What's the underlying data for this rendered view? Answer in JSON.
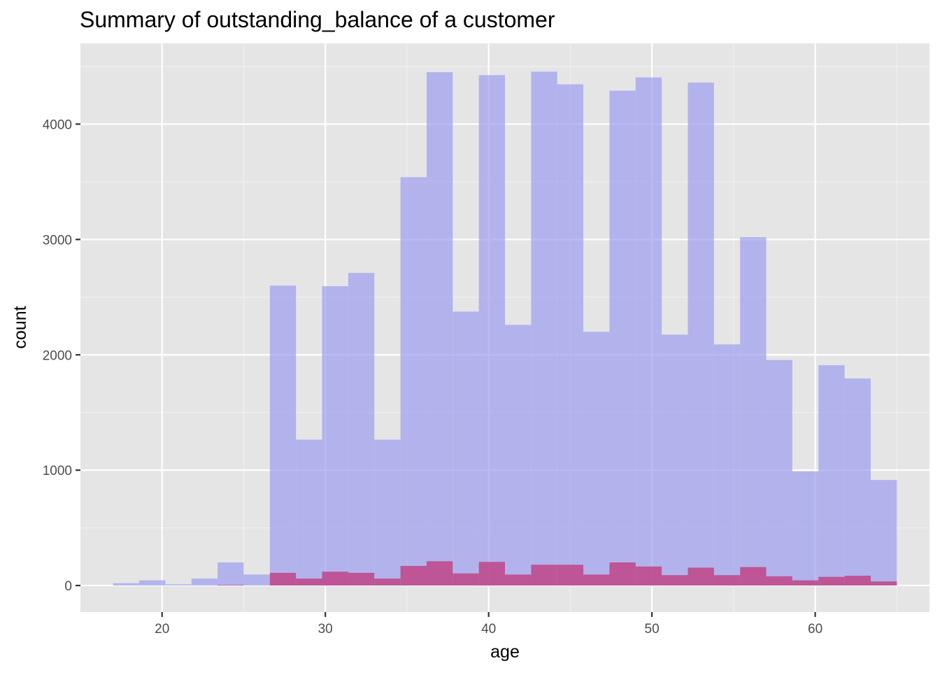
{
  "chart_data": {
    "type": "histogram",
    "title": "Summary of outstanding_balance of a customer",
    "xlabel": "age",
    "ylabel": "count",
    "xlim": [
      15,
      67
    ],
    "ylim": [
      -230,
      4700
    ],
    "x_ticks": [
      20,
      30,
      40,
      50,
      60
    ],
    "y_ticks": [
      0,
      1000,
      2000,
      3000,
      4000
    ],
    "bin_width": 1.6,
    "panel_background": "#e5e5e5",
    "grid": true,
    "legend": "none",
    "series": [
      {
        "color": "#9d9ef0",
        "opacity": 0.7,
        "bins": [
          {
            "x0": 17.0,
            "x1": 18.6,
            "count": 20
          },
          {
            "x0": 18.6,
            "x1": 20.2,
            "count": 45
          },
          {
            "x0": 20.2,
            "x1": 21.8,
            "count": 10
          },
          {
            "x0": 21.8,
            "x1": 23.4,
            "count": 60
          },
          {
            "x0": 23.4,
            "x1": 25.0,
            "count": 200
          },
          {
            "x0": 25.0,
            "x1": 26.6,
            "count": 95
          },
          {
            "x0": 26.6,
            "x1": 28.2,
            "count": 2600
          },
          {
            "x0": 28.2,
            "x1": 29.8,
            "count": 1265
          },
          {
            "x0": 29.8,
            "x1": 31.4,
            "count": 2595
          },
          {
            "x0": 31.4,
            "x1": 33.0,
            "count": 2710
          },
          {
            "x0": 33.0,
            "x1": 34.6,
            "count": 1265
          },
          {
            "x0": 34.6,
            "x1": 36.2,
            "count": 3540
          },
          {
            "x0": 36.2,
            "x1": 37.8,
            "count": 4450
          },
          {
            "x0": 37.8,
            "x1": 39.4,
            "count": 2375
          },
          {
            "x0": 39.4,
            "x1": 41.0,
            "count": 4425
          },
          {
            "x0": 41.0,
            "x1": 42.6,
            "count": 2260
          },
          {
            "x0": 42.6,
            "x1": 44.2,
            "count": 4455
          },
          {
            "x0": 44.2,
            "x1": 45.8,
            "count": 4345
          },
          {
            "x0": 45.8,
            "x1": 47.4,
            "count": 2200
          },
          {
            "x0": 47.4,
            "x1": 49.0,
            "count": 4290
          },
          {
            "x0": 49.0,
            "x1": 50.6,
            "count": 4405
          },
          {
            "x0": 50.6,
            "x1": 52.2,
            "count": 2175
          },
          {
            "x0": 52.2,
            "x1": 53.8,
            "count": 4360
          },
          {
            "x0": 53.8,
            "x1": 55.4,
            "count": 2090
          },
          {
            "x0": 55.4,
            "x1": 57.0,
            "count": 3020
          },
          {
            "x0": 57.0,
            "x1": 58.6,
            "count": 1955
          },
          {
            "x0": 58.6,
            "x1": 60.2,
            "count": 990
          },
          {
            "x0": 60.2,
            "x1": 61.8,
            "count": 1910
          },
          {
            "x0": 61.8,
            "x1": 63.4,
            "count": 1795
          },
          {
            "x0": 63.4,
            "x1": 65.0,
            "count": 915
          }
        ]
      },
      {
        "color": "#c0367a",
        "opacity": 0.75,
        "bins": [
          {
            "x0": 23.4,
            "x1": 25.0,
            "count": 5
          },
          {
            "x0": 26.6,
            "x1": 28.2,
            "count": 110
          },
          {
            "x0": 28.2,
            "x1": 29.8,
            "count": 60
          },
          {
            "x0": 29.8,
            "x1": 31.4,
            "count": 120
          },
          {
            "x0": 31.4,
            "x1": 33.0,
            "count": 110
          },
          {
            "x0": 33.0,
            "x1": 34.6,
            "count": 60
          },
          {
            "x0": 34.6,
            "x1": 36.2,
            "count": 170
          },
          {
            "x0": 36.2,
            "x1": 37.8,
            "count": 210
          },
          {
            "x0": 37.8,
            "x1": 39.4,
            "count": 105
          },
          {
            "x0": 39.4,
            "x1": 41.0,
            "count": 205
          },
          {
            "x0": 41.0,
            "x1": 42.6,
            "count": 95
          },
          {
            "x0": 42.6,
            "x1": 44.2,
            "count": 180
          },
          {
            "x0": 44.2,
            "x1": 45.8,
            "count": 180
          },
          {
            "x0": 45.8,
            "x1": 47.4,
            "count": 95
          },
          {
            "x0": 47.4,
            "x1": 49.0,
            "count": 200
          },
          {
            "x0": 49.0,
            "x1": 50.6,
            "count": 165
          },
          {
            "x0": 50.6,
            "x1": 52.2,
            "count": 90
          },
          {
            "x0": 52.2,
            "x1": 53.8,
            "count": 155
          },
          {
            "x0": 53.8,
            "x1": 55.4,
            "count": 90
          },
          {
            "x0": 55.4,
            "x1": 57.0,
            "count": 160
          },
          {
            "x0": 57.0,
            "x1": 58.6,
            "count": 80
          },
          {
            "x0": 58.6,
            "x1": 60.2,
            "count": 45
          },
          {
            "x0": 60.2,
            "x1": 61.8,
            "count": 75
          },
          {
            "x0": 61.8,
            "x1": 63.4,
            "count": 85
          },
          {
            "x0": 63.4,
            "x1": 65.0,
            "count": 35
          }
        ]
      }
    ]
  }
}
